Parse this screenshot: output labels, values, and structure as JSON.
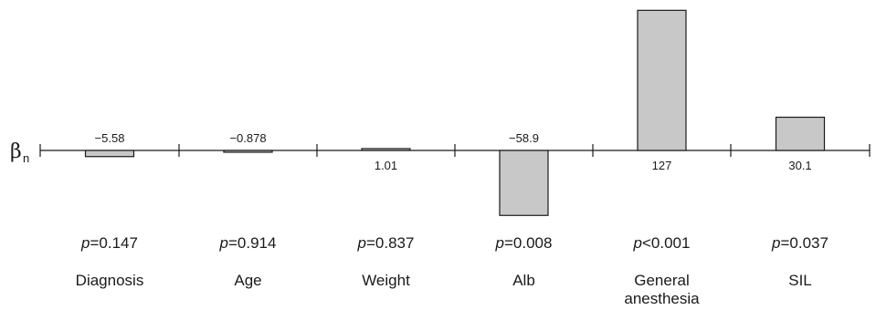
{
  "chart_data": {
    "type": "bar",
    "axis_label": {
      "symbol": "β",
      "subscript": "n"
    },
    "categories": [
      [
        "Diagnosis"
      ],
      [
        "Age"
      ],
      [
        "Weight"
      ],
      [
        "Alb"
      ],
      [
        "General",
        "anesthesia"
      ],
      [
        "SIL"
      ]
    ],
    "values": [
      -5.58,
      -0.878,
      1.01,
      -58.9,
      127,
      30.1
    ],
    "value_labels": [
      "−5.58",
      "−0.878",
      "1.01",
      "−58.9",
      "127",
      "30.1"
    ],
    "p_values": [
      {
        "prefix": "p",
        "op": "=",
        "value": "0.147"
      },
      {
        "prefix": "p",
        "op": "=",
        "value": "0.914"
      },
      {
        "prefix": "p",
        "op": "=",
        "value": "0.837"
      },
      {
        "prefix": "p",
        "op": "=",
        "value": "0.008"
      },
      {
        "prefix": "p",
        "op": "<",
        "value": "0.001"
      },
      {
        "prefix": "p",
        "op": "=",
        "value": "0.037"
      }
    ],
    "colors": {
      "bar_fill": "#c8c8c8",
      "bar_stroke": "#1a1a1a",
      "axis": "#1a1a1a"
    },
    "grid": false,
    "legend": false
  }
}
